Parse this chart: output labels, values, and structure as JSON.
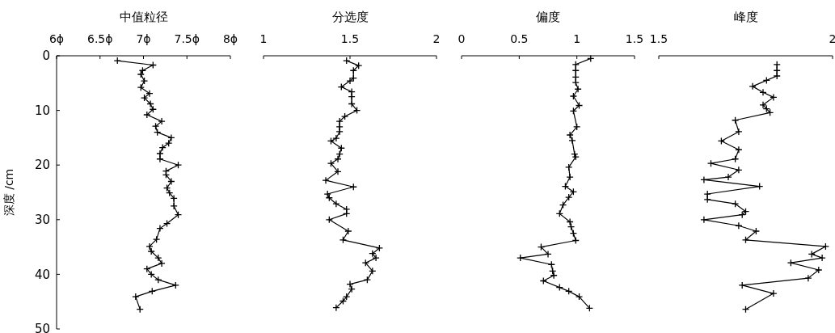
{
  "chart_data": [
    {
      "type": "line",
      "xlabel": "中值粒径",
      "ylabel": "深度 /cm",
      "xlim": [
        6,
        8
      ],
      "xticks": [
        {
          "value": 6,
          "label": "6ϕ"
        },
        {
          "value": 6.5,
          "label": "6.5ϕ"
        },
        {
          "value": 7,
          "label": "7ϕ"
        },
        {
          "value": 7.5,
          "label": "7.5ϕ"
        },
        {
          "value": 8,
          "label": "8ϕ"
        }
      ],
      "ylim": [
        50,
        0
      ],
      "yticks": [
        0,
        10,
        20,
        30,
        40,
        50
      ],
      "marker": "cross",
      "series": [
        {
          "color": "#000000",
          "x": [
            6.7,
            7.11,
            6.99,
            6.97,
            7.01,
            6.97,
            7.07,
            7.01,
            7.08,
            7.11,
            7.04,
            7.21,
            7.14,
            7.16,
            7.32,
            7.29,
            7.22,
            7.19,
            7.19,
            7.4,
            7.26,
            7.26,
            7.32,
            7.27,
            7.3,
            7.35,
            7.35,
            7.4,
            7.27,
            7.19,
            7.15,
            7.07,
            7.09,
            7.17,
            7.21,
            7.04,
            7.09,
            7.17,
            7.37,
            7.1,
            6.91,
            6.96
          ],
          "values": [
            0.9,
            1.7,
            2.7,
            3.4,
            4.6,
            5.8,
            6.9,
            7.7,
            8.8,
            9.8,
            10.8,
            12.0,
            12.9,
            14.0,
            15.0,
            16.0,
            16.8,
            17.9,
            18.9,
            20.0,
            21.1,
            21.8,
            23.0,
            24.2,
            25.1,
            26.1,
            27.5,
            29.1,
            30.7,
            31.6,
            33.6,
            34.9,
            35.8,
            37.0,
            38.0,
            39.0,
            40.0,
            41.0,
            42.0,
            43.1,
            44.1,
            46.4
          ]
        }
      ]
    },
    {
      "type": "line",
      "xlabel": "分选度",
      "xlim": [
        1,
        2
      ],
      "xticks": [
        1,
        1.5,
        2
      ],
      "ylim": [
        50,
        0
      ],
      "yticks": [
        0,
        10,
        20,
        30,
        40,
        50
      ],
      "tick_labels": "x",
      "marker": "cross",
      "series": [
        {
          "color": "#000000",
          "x": [
            1.48,
            1.55,
            1.52,
            1.52,
            1.5,
            1.45,
            1.51,
            1.51,
            1.51,
            1.54,
            1.47,
            1.44,
            1.44,
            1.44,
            1.42,
            1.39,
            1.45,
            1.44,
            1.43,
            1.39,
            1.43,
            1.36,
            1.52,
            1.37,
            1.38,
            1.42,
            1.48,
            1.48,
            1.38,
            1.49,
            1.46,
            1.67,
            1.63,
            1.65,
            1.59,
            1.63,
            1.6,
            1.5,
            1.51,
            1.48,
            1.46,
            1.42
          ],
          "values": [
            0.9,
            1.8,
            2.7,
            4.1,
            4.6,
            5.7,
            6.6,
            7.5,
            8.8,
            10.0,
            11.1,
            12.0,
            13.0,
            13.9,
            15.1,
            15.6,
            16.9,
            18.0,
            18.9,
            19.7,
            21.2,
            22.8,
            24.0,
            25.3,
            26.0,
            27.1,
            28.1,
            28.9,
            30.0,
            32.1,
            33.7,
            35.2,
            36.2,
            37.0,
            37.9,
            39.4,
            41.0,
            41.8,
            42.7,
            44.1,
            44.9,
            46.1
          ]
        }
      ]
    },
    {
      "type": "line",
      "xlabel": "偏度",
      "xlim": [
        0,
        1.5
      ],
      "xticks": [
        0,
        0.5,
        1,
        1.5
      ],
      "ylim": [
        50,
        0
      ],
      "yticks": [
        0,
        10,
        20,
        30,
        40,
        50
      ],
      "tick_labels": "x",
      "marker": "cross",
      "series": [
        {
          "color": "#000000",
          "x": [
            1.12,
            0.99,
            0.99,
            0.99,
            0.99,
            1.01,
            0.97,
            1.02,
            0.97,
            1.0,
            0.94,
            0.96,
            0.98,
            0.99,
            0.93,
            0.94,
            0.9,
            0.97,
            0.93,
            0.88,
            0.85,
            0.94,
            0.95,
            0.97,
            0.99,
            0.69,
            0.75,
            0.51,
            0.78,
            0.79,
            0.8,
            0.71,
            0.85,
            0.93,
            1.02,
            1.11
          ],
          "values": [
            0.5,
            1.6,
            2.7,
            3.9,
            4.9,
            6.1,
            7.4,
            9.1,
            10.1,
            13.0,
            14.5,
            15.5,
            18.0,
            18.5,
            20.4,
            22.2,
            23.9,
            24.9,
            25.9,
            27.3,
            28.9,
            30.4,
            31.3,
            32.5,
            33.8,
            35.0,
            36.3,
            37.0,
            38.2,
            39.4,
            40.2,
            41.2,
            42.4,
            43.1,
            44.1,
            46.2
          ]
        }
      ]
    },
    {
      "type": "line",
      "xlabel": "峰度",
      "xlim": [
        1.5,
        2
      ],
      "xticks": [
        1.5,
        2
      ],
      "ylim": [
        50,
        0
      ],
      "yticks": [
        0,
        10,
        20,
        30,
        40,
        50
      ],
      "tick_labels": "x",
      "marker": "cross",
      "series": [
        {
          "color": "#000000",
          "x": [
            1.84,
            1.84,
            1.84,
            1.81,
            1.77,
            1.8,
            1.83,
            1.8,
            1.81,
            1.82,
            1.72,
            1.73,
            1.68,
            1.73,
            1.72,
            1.65,
            1.73,
            1.7,
            1.63,
            1.79,
            1.64,
            1.64,
            1.72,
            1.75,
            1.74,
            1.63,
            1.73,
            1.78,
            1.75,
            1.98,
            1.94,
            1.97,
            1.88,
            1.96,
            1.93,
            1.74,
            1.83,
            1.75
          ],
          "values": [
            1.6,
            2.7,
            3.7,
            4.5,
            5.6,
            6.7,
            7.6,
            9.0,
            9.7,
            10.4,
            11.8,
            13.9,
            15.6,
            17.2,
            18.9,
            19.7,
            20.9,
            22.2,
            22.7,
            23.9,
            25.3,
            26.3,
            27.1,
            28.5,
            29.1,
            30.0,
            31.1,
            32.1,
            33.7,
            34.9,
            36.3,
            37.0,
            37.9,
            39.2,
            40.7,
            42.0,
            43.5,
            46.4
          ]
        }
      ]
    }
  ]
}
